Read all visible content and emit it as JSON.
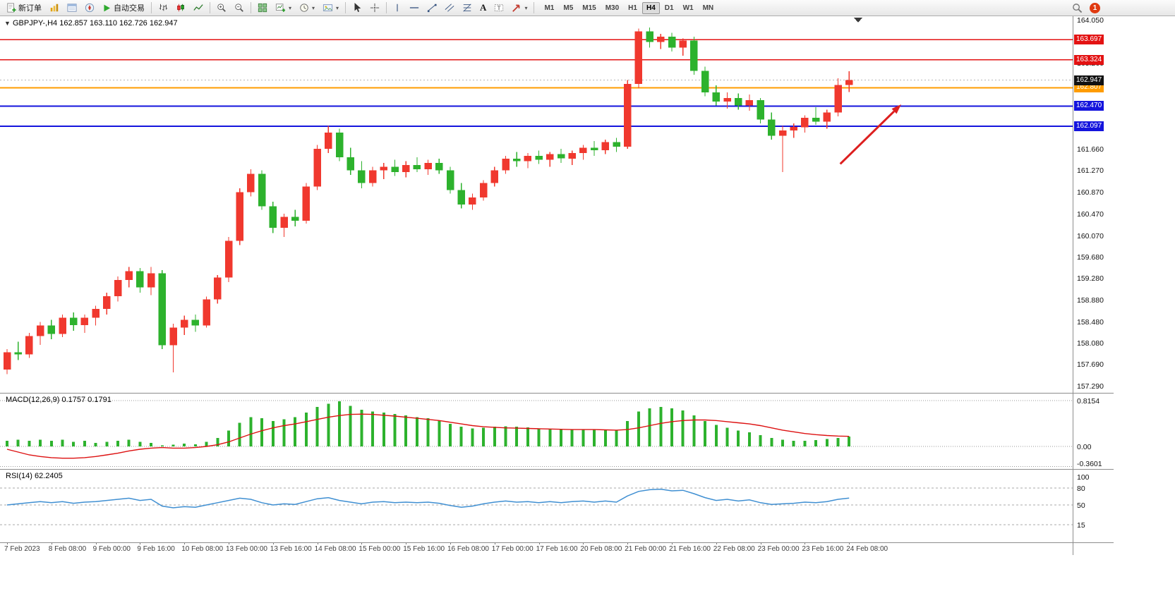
{
  "toolbar": {
    "new_order_label": "新订单",
    "auto_trading_label": "自动交易",
    "timeframes": [
      "M1",
      "M5",
      "M15",
      "M30",
      "H1",
      "H4",
      "D1",
      "W1",
      "MN"
    ],
    "active_timeframe": "H4",
    "badge_count": "1",
    "icon_names": [
      "new-order-icon",
      "market-watch-icon",
      "data-window-icon",
      "navigator-icon",
      "autotrading-play-icon",
      "bar-chart-icon",
      "candlestick-chart-icon",
      "line-chart-icon",
      "zoom-in-icon",
      "zoom-out-icon",
      "tile-windows-icon",
      "new-chart-icon",
      "periods-clock-icon",
      "template-icon",
      "cursor-icon",
      "crosshair-icon",
      "vertical-line-icon",
      "horizontal-line-icon",
      "trendline-icon",
      "channel-icon",
      "fibonacci-icon",
      "text-icon",
      "label-icon",
      "arrows-icon",
      "search-icon",
      "notification-badge"
    ]
  },
  "chart": {
    "title": "GBPJPY-,H4 162.857 163.110 162.726 162.947",
    "symbol": "GBPJPY-",
    "period": "H4",
    "ohlc": {
      "open": "162.857",
      "high": "163.110",
      "low": "162.726",
      "close": "162.947"
    }
  },
  "chart_data": {
    "type": "candlestick",
    "symbol": "GBPJPY-",
    "timeframe": "H4",
    "price_axis_ticks": [
      "164.050",
      "163.660",
      "163.260",
      "162.860",
      "162.460",
      "162.060",
      "161.660",
      "161.270",
      "160.870",
      "160.470",
      "160.070",
      "159.680",
      "159.280",
      "158.880",
      "158.480",
      "158.080",
      "157.690",
      "157.290"
    ],
    "levels": [
      {
        "price": 163.697,
        "label": "163.697",
        "color": "#e31212",
        "width": 1.4
      },
      {
        "price": 163.324,
        "label": "163.324",
        "color": "#e31212",
        "width": 1.4
      },
      {
        "price": 162.807,
        "label": "162.807",
        "color": "#ff9c00",
        "width": 2
      },
      {
        "price": 162.47,
        "label": "162.470",
        "color": "#1414dd",
        "width": 2
      },
      {
        "price": 162.097,
        "label": "162.097",
        "color": "#1414dd",
        "width": 2
      }
    ],
    "current_price": {
      "value": 162.947,
      "label": "162.947"
    },
    "candles": [
      [
        157.6,
        157.98,
        157.52,
        157.92
      ],
      [
        157.92,
        158.12,
        157.78,
        157.88
      ],
      [
        157.88,
        158.28,
        157.82,
        158.22
      ],
      [
        158.22,
        158.48,
        158.06,
        158.42
      ],
      [
        158.42,
        158.52,
        158.16,
        158.26
      ],
      [
        158.26,
        158.62,
        158.2,
        158.56
      ],
      [
        158.56,
        158.66,
        158.32,
        158.42
      ],
      [
        158.42,
        158.62,
        158.28,
        158.56
      ],
      [
        158.56,
        158.78,
        158.42,
        158.72
      ],
      [
        158.72,
        159.02,
        158.62,
        158.96
      ],
      [
        158.96,
        159.32,
        158.86,
        159.26
      ],
      [
        159.26,
        159.5,
        159.12,
        159.42
      ],
      [
        159.42,
        159.48,
        159.02,
        159.12
      ],
      [
        159.12,
        159.5,
        158.98,
        159.38
      ],
      [
        159.38,
        159.44,
        157.98,
        158.05
      ],
      [
        158.05,
        158.45,
        157.55,
        158.38
      ],
      [
        158.38,
        158.6,
        158.24,
        158.52
      ],
      [
        158.52,
        158.62,
        158.3,
        158.42
      ],
      [
        158.42,
        158.95,
        158.38,
        158.9
      ],
      [
        158.9,
        159.35,
        158.82,
        159.3
      ],
      [
        159.3,
        160.05,
        159.22,
        159.98
      ],
      [
        159.98,
        160.95,
        159.9,
        160.88
      ],
      [
        160.88,
        161.3,
        160.8,
        161.22
      ],
      [
        161.22,
        161.28,
        160.55,
        160.62
      ],
      [
        160.62,
        160.7,
        160.12,
        160.22
      ],
      [
        160.22,
        160.48,
        160.05,
        160.42
      ],
      [
        160.42,
        160.55,
        160.25,
        160.35
      ],
      [
        160.35,
        161.05,
        160.3,
        160.98
      ],
      [
        160.98,
        161.75,
        160.92,
        161.68
      ],
      [
        161.68,
        162.1,
        161.6,
        161.98
      ],
      [
        161.98,
        162.05,
        161.45,
        161.52
      ],
      [
        161.52,
        161.7,
        161.2,
        161.28
      ],
      [
        161.28,
        161.45,
        160.95,
        161.05
      ],
      [
        161.05,
        161.35,
        160.98,
        161.28
      ],
      [
        161.28,
        161.42,
        161.12,
        161.35
      ],
      [
        161.35,
        161.48,
        161.18,
        161.25
      ],
      [
        161.25,
        161.45,
        161.15,
        161.38
      ],
      [
        161.38,
        161.52,
        161.25,
        161.3
      ],
      [
        161.3,
        161.48,
        161.2,
        161.42
      ],
      [
        161.42,
        161.5,
        161.22,
        161.28
      ],
      [
        161.28,
        161.35,
        160.85,
        160.92
      ],
      [
        160.92,
        161.05,
        160.58,
        160.65
      ],
      [
        160.65,
        160.85,
        160.55,
        160.78
      ],
      [
        160.78,
        161.1,
        160.72,
        161.05
      ],
      [
        161.05,
        161.35,
        160.98,
        161.28
      ],
      [
        161.28,
        161.55,
        161.22,
        161.5
      ],
      [
        161.5,
        161.62,
        161.35,
        161.45
      ],
      [
        161.45,
        161.6,
        161.32,
        161.55
      ],
      [
        161.55,
        161.65,
        161.4,
        161.48
      ],
      [
        161.48,
        161.62,
        161.35,
        161.58
      ],
      [
        161.58,
        161.68,
        161.42,
        161.5
      ],
      [
        161.5,
        161.65,
        161.38,
        161.6
      ],
      [
        161.6,
        161.75,
        161.48,
        161.7
      ],
      [
        161.7,
        161.82,
        161.55,
        161.65
      ],
      [
        161.65,
        161.85,
        161.58,
        161.8
      ],
      [
        161.8,
        161.88,
        161.62,
        161.72
      ],
      [
        161.72,
        162.95,
        161.68,
        162.88
      ],
      [
        162.88,
        163.9,
        162.8,
        163.85
      ],
      [
        163.85,
        163.92,
        163.55,
        163.65
      ],
      [
        163.65,
        163.8,
        163.52,
        163.75
      ],
      [
        163.75,
        163.82,
        163.48,
        163.55
      ],
      [
        163.55,
        163.72,
        163.4,
        163.68
      ],
      [
        163.68,
        163.75,
        163.05,
        163.12
      ],
      [
        163.12,
        163.2,
        162.65,
        162.72
      ],
      [
        162.72,
        162.85,
        162.48,
        162.55
      ],
      [
        162.55,
        162.72,
        162.42,
        162.62
      ],
      [
        162.62,
        162.7,
        162.4,
        162.48
      ],
      [
        162.48,
        162.68,
        162.38,
        162.58
      ],
      [
        162.58,
        162.62,
        162.15,
        162.22
      ],
      [
        162.22,
        162.35,
        161.85,
        161.92
      ],
      [
        161.92,
        162.1,
        161.25,
        162.02
      ],
      [
        162.02,
        162.15,
        161.88,
        162.08
      ],
      [
        162.08,
        162.3,
        161.98,
        162.25
      ],
      [
        162.25,
        162.45,
        162.12,
        162.18
      ],
      [
        162.18,
        162.4,
        162.05,
        162.35
      ],
      [
        162.35,
        162.98,
        162.28,
        162.86
      ],
      [
        162.857,
        163.11,
        162.726,
        162.947
      ]
    ],
    "time_labels": [
      {
        "i": 0,
        "label": "7 Feb 2023"
      },
      {
        "i": 4,
        "label": "8 Feb 08:00"
      },
      {
        "i": 8,
        "label": "9 Feb 00:00"
      },
      {
        "i": 12,
        "label": "9 Feb 16:00"
      },
      {
        "i": 16,
        "label": "10 Feb 08:00"
      },
      {
        "i": 20,
        "label": "13 Feb 00:00"
      },
      {
        "i": 24,
        "label": "13 Feb 16:00"
      },
      {
        "i": 28,
        "label": "14 Feb 08:00"
      },
      {
        "i": 32,
        "label": "15 Feb 00:00"
      },
      {
        "i": 36,
        "label": "15 Feb 16:00"
      },
      {
        "i": 40,
        "label": "16 Feb 08:00"
      },
      {
        "i": 44,
        "label": "17 Feb 00:00"
      },
      {
        "i": 48,
        "label": "17 Feb 16:00"
      },
      {
        "i": 52,
        "label": "20 Feb 08:00"
      },
      {
        "i": 56,
        "label": "21 Feb 00:00"
      },
      {
        "i": 60,
        "label": "21 Feb 16:00"
      },
      {
        "i": 64,
        "label": "22 Feb 08:00"
      },
      {
        "i": 68,
        "label": "23 Feb 00:00"
      },
      {
        "i": 72,
        "label": "23 Feb 16:00"
      },
      {
        "i": 76,
        "label": "24 Feb 08:00"
      }
    ],
    "macd": {
      "label": "MACD(12,26,9) 0.1757 0.1791",
      "axis": [
        "0.8154",
        "0.00",
        "-0.3601"
      ],
      "histogram": [
        0.1,
        0.12,
        0.1,
        0.12,
        0.1,
        0.12,
        0.08,
        0.1,
        0.06,
        0.08,
        0.1,
        0.12,
        0.08,
        0.06,
        0.02,
        0.03,
        0.05,
        0.04,
        0.08,
        0.15,
        0.28,
        0.42,
        0.52,
        0.5,
        0.45,
        0.48,
        0.52,
        0.6,
        0.7,
        0.76,
        0.8,
        0.72,
        0.65,
        0.62,
        0.6,
        0.58,
        0.55,
        0.52,
        0.5,
        0.46,
        0.4,
        0.35,
        0.32,
        0.33,
        0.35,
        0.36,
        0.35,
        0.34,
        0.32,
        0.31,
        0.3,
        0.3,
        0.31,
        0.3,
        0.3,
        0.28,
        0.45,
        0.62,
        0.68,
        0.7,
        0.68,
        0.64,
        0.55,
        0.45,
        0.38,
        0.33,
        0.28,
        0.25,
        0.2,
        0.15,
        0.12,
        0.1,
        0.1,
        0.11,
        0.13,
        0.15,
        0.176
      ],
      "signal": [
        -0.05,
        -0.1,
        -0.15,
        -0.18,
        -0.2,
        -0.21,
        -0.21,
        -0.2,
        -0.18,
        -0.15,
        -0.12,
        -0.08,
        -0.05,
        -0.03,
        -0.02,
        -0.03,
        -0.03,
        -0.02,
        0.0,
        0.03,
        0.08,
        0.15,
        0.22,
        0.28,
        0.33,
        0.37,
        0.4,
        0.44,
        0.48,
        0.52,
        0.55,
        0.57,
        0.575,
        0.57,
        0.555,
        0.54,
        0.52,
        0.5,
        0.48,
        0.46,
        0.43,
        0.4,
        0.37,
        0.35,
        0.34,
        0.33,
        0.325,
        0.32,
        0.315,
        0.31,
        0.305,
        0.3,
        0.3,
        0.3,
        0.295,
        0.29,
        0.3,
        0.33,
        0.37,
        0.41,
        0.44,
        0.46,
        0.47,
        0.47,
        0.46,
        0.44,
        0.42,
        0.4,
        0.37,
        0.33,
        0.29,
        0.26,
        0.23,
        0.21,
        0.195,
        0.185,
        0.179
      ]
    },
    "rsi": {
      "label": "RSI(14) 62.2405",
      "axis": [
        "100",
        "80",
        "50",
        "15"
      ],
      "levels": [
        80,
        50,
        15
      ],
      "values": [
        50,
        52,
        54,
        56,
        54,
        56,
        53,
        55,
        56,
        58,
        60,
        62,
        58,
        60,
        48,
        45,
        47,
        46,
        50,
        54,
        58,
        62,
        60,
        54,
        50,
        52,
        51,
        56,
        61,
        63,
        58,
        55,
        52,
        55,
        56,
        54,
        55,
        54,
        55,
        53,
        49,
        46,
        48,
        52,
        55,
        57,
        55,
        56,
        54,
        56,
        54,
        56,
        57,
        55,
        57,
        55,
        66,
        74,
        77,
        78,
        75,
        76,
        70,
        63,
        58,
        60,
        57,
        59,
        54,
        51,
        52,
        53,
        55,
        54,
        56,
        60,
        62.24
      ]
    },
    "arrow": {
      "x1_bar": 75.2,
      "y1_price": 161.4,
      "x2_bar": 80.7,
      "y2_price": 162.5,
      "color": "#dd1f1f"
    },
    "colors": {
      "bull": "#f0382e",
      "bear": "#2db22d",
      "macd_hist": "#2db22d",
      "macd_signal": "#dd1111",
      "rsi_line": "#3f8fd2"
    }
  }
}
